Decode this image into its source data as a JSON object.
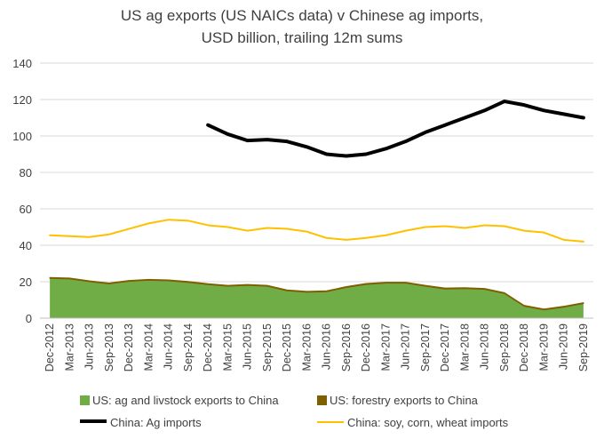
{
  "chart_data": {
    "type": "line",
    "title": "US ag exports (US NAICs data) v Chinese ag imports,",
    "subtitle": "USD billion, trailing 12m sums",
    "ylim": [
      0,
      140
    ],
    "yticks": [
      0,
      20,
      40,
      60,
      80,
      100,
      120,
      140
    ],
    "x_start": "2012-12",
    "x": [
      "Dec-2012",
      "Mar-2013",
      "Jun-2013",
      "Sep-2013",
      "Dec-2013",
      "Mar-2014",
      "Jun-2014",
      "Sep-2014",
      "Dec-2014",
      "Mar-2015",
      "Jun-2015",
      "Sep-2015",
      "Dec-2015",
      "Mar-2016",
      "Jun-2016",
      "Sep-2016",
      "Dec-2016",
      "Mar-2017",
      "Jun-2017",
      "Sep-2017",
      "Dec-2017",
      "Mar-2018",
      "Jun-2018",
      "Sep-2018",
      "Dec-2018",
      "Mar-2019",
      "Jun-2019",
      "Sep-2019"
    ],
    "grid": true,
    "legend_placement": "bottom",
    "series": [
      {
        "name": "US: ag and livstock exports to China",
        "kind": "area",
        "color": "#70ad47",
        "values": [
          21.8,
          21.5,
          20.0,
          18.8,
          20.2,
          20.8,
          20.5,
          19.6,
          18.4,
          17.5,
          18.0,
          17.5,
          15.0,
          14.2,
          14.5,
          16.8,
          18.5,
          19.2,
          19.2,
          17.5,
          16.0,
          16.2,
          15.8,
          13.5,
          6.5,
          4.5,
          6.0,
          8.0
        ]
      },
      {
        "name": "US: forestry exports to China",
        "kind": "area-stacked",
        "color": "#7f6000",
        "values": [
          0.5,
          0.5,
          0.5,
          0.5,
          0.5,
          0.5,
          0.5,
          0.5,
          0.5,
          0.5,
          0.5,
          0.5,
          0.5,
          0.5,
          0.5,
          0.5,
          0.5,
          0.5,
          0.5,
          0.5,
          0.5,
          0.5,
          0.5,
          0.5,
          0.5,
          0.5,
          0.5,
          0.5
        ]
      },
      {
        "name": "China: Ag imports",
        "kind": "line",
        "color": "#000000",
        "values": [
          null,
          null,
          null,
          null,
          null,
          null,
          null,
          null,
          106,
          101,
          97.5,
          98,
          97,
          94,
          90,
          89,
          90,
          93,
          97,
          102,
          106,
          110,
          114,
          119,
          117,
          114,
          112,
          110
        ]
      },
      {
        "name": "China: soy, corn, wheat imports",
        "kind": "line",
        "color": "#ffc000",
        "values": [
          45.5,
          45,
          44.5,
          46,
          49,
          52,
          54,
          53.5,
          51,
          50,
          48,
          49.5,
          49,
          47.5,
          44,
          43,
          44,
          45.5,
          48,
          50,
          50.5,
          49.5,
          51,
          50.5,
          48,
          47,
          43,
          42
        ]
      }
    ]
  }
}
